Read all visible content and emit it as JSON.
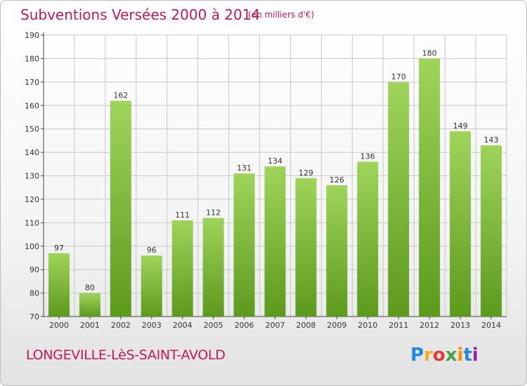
{
  "header": {
    "title": "Subventions Versées 2000 à 2014",
    "subtitle": "(en milliers d'€)"
  },
  "footer": {
    "commune": "LONGEVILLE-LèS-SAINT-AVOLD",
    "brand": "Proxiti"
  },
  "colors": {
    "title": "#c2185b",
    "bar_top": "#9fd45a",
    "bar_bottom": "#5c9a1c",
    "grid": "#c8c8c8"
  },
  "chart_data": {
    "type": "bar",
    "title": "Subventions Versées 2000 à 2014",
    "subtitle": "(en milliers d'€)",
    "categories": [
      "2000",
      "2001",
      "2002",
      "2003",
      "2004",
      "2005",
      "2006",
      "2007",
      "2008",
      "2009",
      "2010",
      "2011",
      "2012",
      "2013",
      "2014"
    ],
    "values": [
      97,
      80,
      162,
      96,
      111,
      112,
      131,
      134,
      129,
      126,
      136,
      170,
      180,
      149,
      143
    ],
    "ylim": [
      70,
      190
    ],
    "yticks": [
      70,
      80,
      90,
      100,
      110,
      120,
      130,
      140,
      150,
      160,
      170,
      180,
      190
    ],
    "grid": true,
    "data_labels": true
  }
}
